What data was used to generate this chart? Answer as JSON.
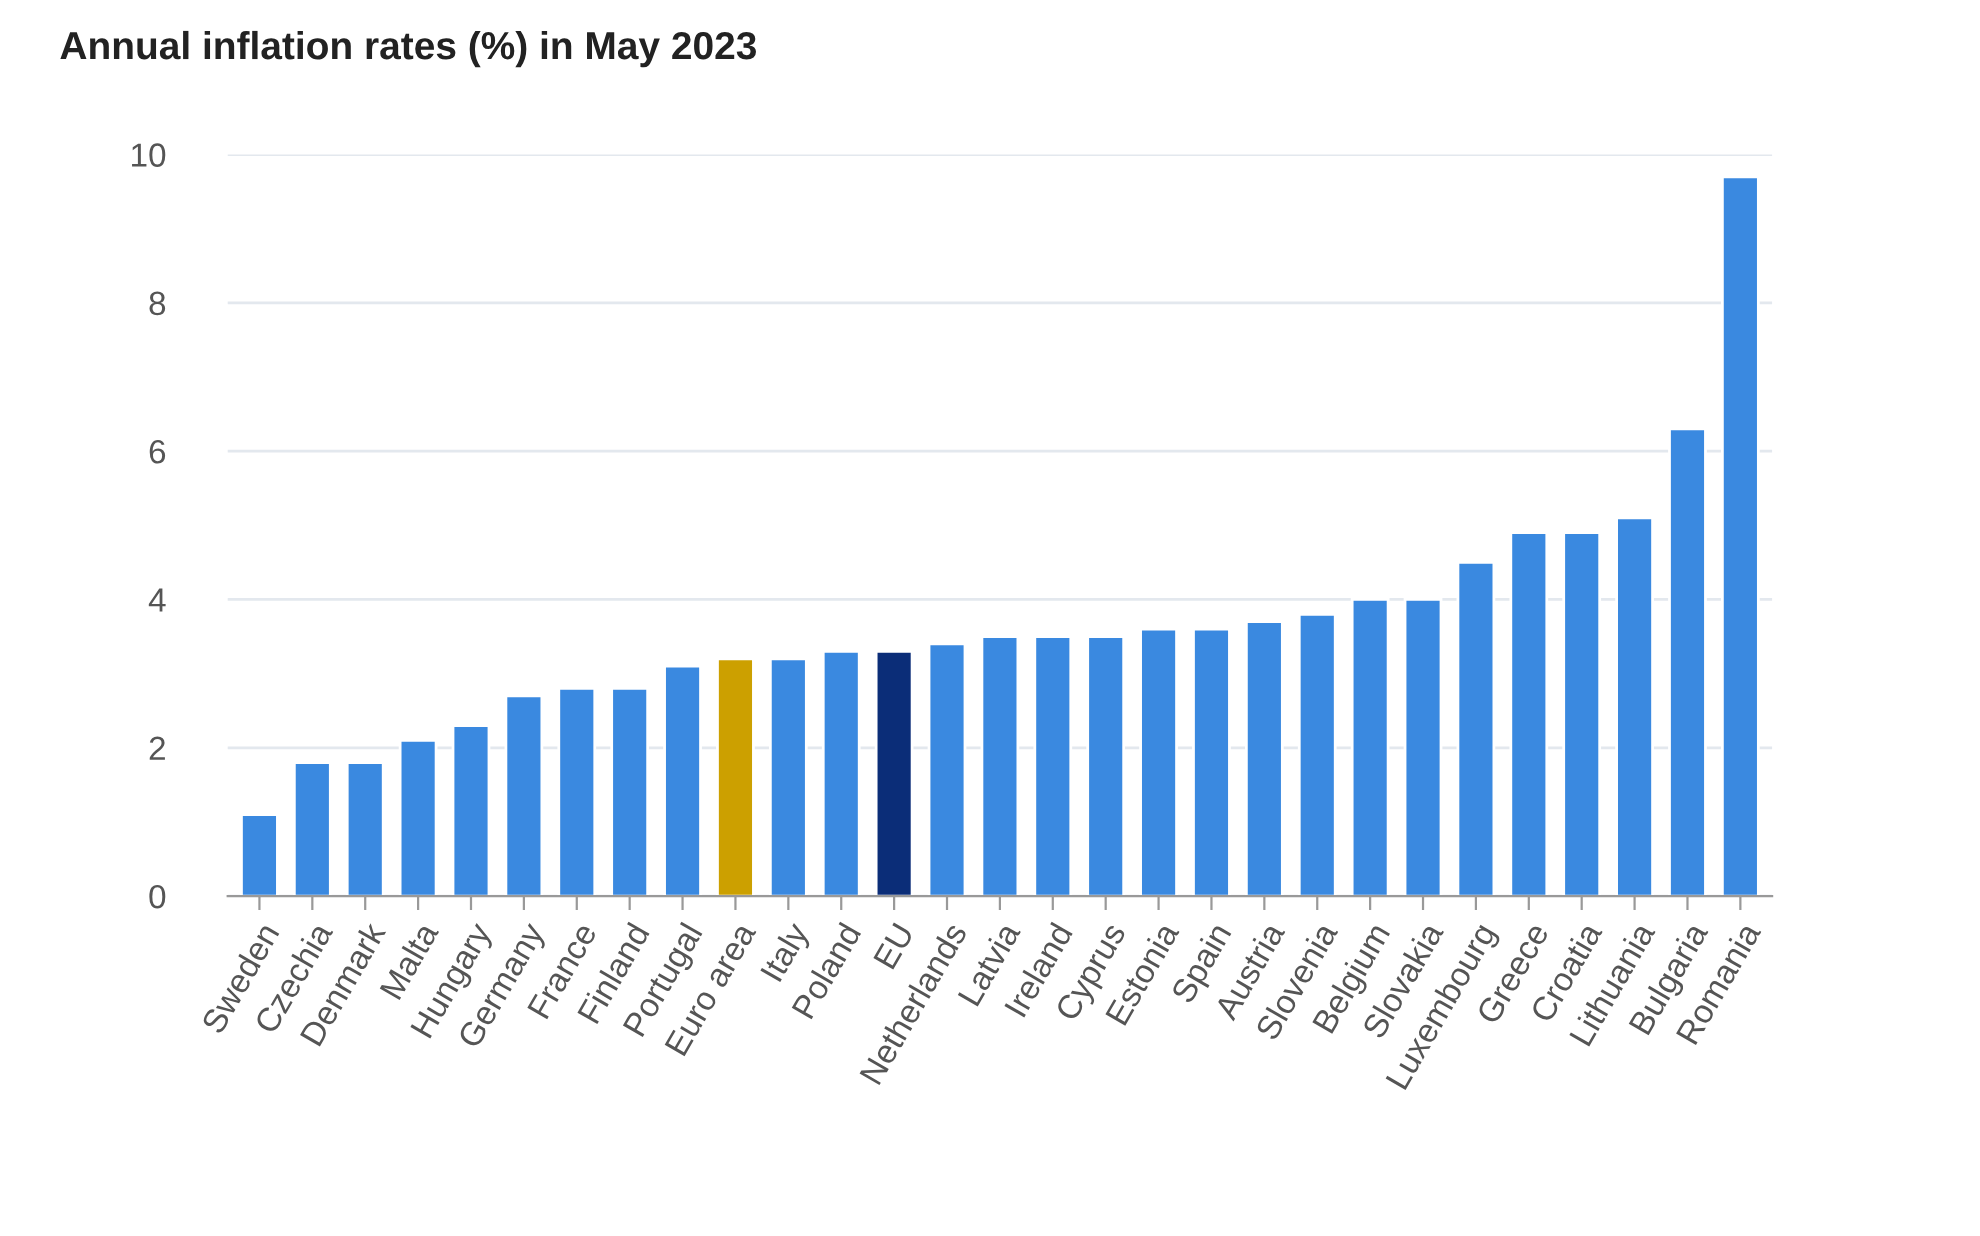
{
  "chart_data": {
    "type": "bar",
    "title": "Annual inflation rates (%) in May 2023",
    "categories": [
      "Sweden",
      "Czechia",
      "Denmark",
      "Malta",
      "Hungary",
      "Germany",
      "France",
      "Finland",
      "Portugal",
      "Euro area",
      "Italy",
      "Poland",
      "EU",
      "Netherlands",
      "Latvia",
      "Ireland",
      "Cyprus",
      "Estonia",
      "Spain",
      "Austria",
      "Slovenia",
      "Belgium",
      "Slovakia",
      "Luxembourg",
      "Greece",
      "Croatia",
      "Lithuania",
      "Bulgaria",
      "Romania"
    ],
    "values": [
      1.1,
      1.8,
      1.8,
      2.1,
      2.3,
      2.7,
      2.8,
      2.8,
      3.1,
      3.2,
      3.2,
      3.3,
      3.3,
      3.4,
      3.5,
      3.5,
      3.5,
      3.6,
      3.6,
      3.7,
      3.8,
      4.0,
      4.0,
      4.5,
      4.9,
      4.9,
      5.1,
      6.3,
      9.7
    ],
    "colors": [
      "#3a89e0",
      "#3a89e0",
      "#3a89e0",
      "#3a89e0",
      "#3a89e0",
      "#3a89e0",
      "#3a89e0",
      "#3a89e0",
      "#3a89e0",
      "#cca000",
      "#3a89e0",
      "#3a89e0",
      "#0b2d78",
      "#3a89e0",
      "#3a89e0",
      "#3a89e0",
      "#3a89e0",
      "#3a89e0",
      "#3a89e0",
      "#3a89e0",
      "#3a89e0",
      "#3a89e0",
      "#3a89e0",
      "#3a89e0",
      "#3a89e0",
      "#3a89e0",
      "#3a89e0",
      "#3a89e0",
      "#3a89e0"
    ],
    "ylim": [
      0,
      10
    ],
    "yticks": [
      0,
      2,
      4,
      6,
      8,
      10
    ],
    "grid": "y",
    "legend": false
  }
}
